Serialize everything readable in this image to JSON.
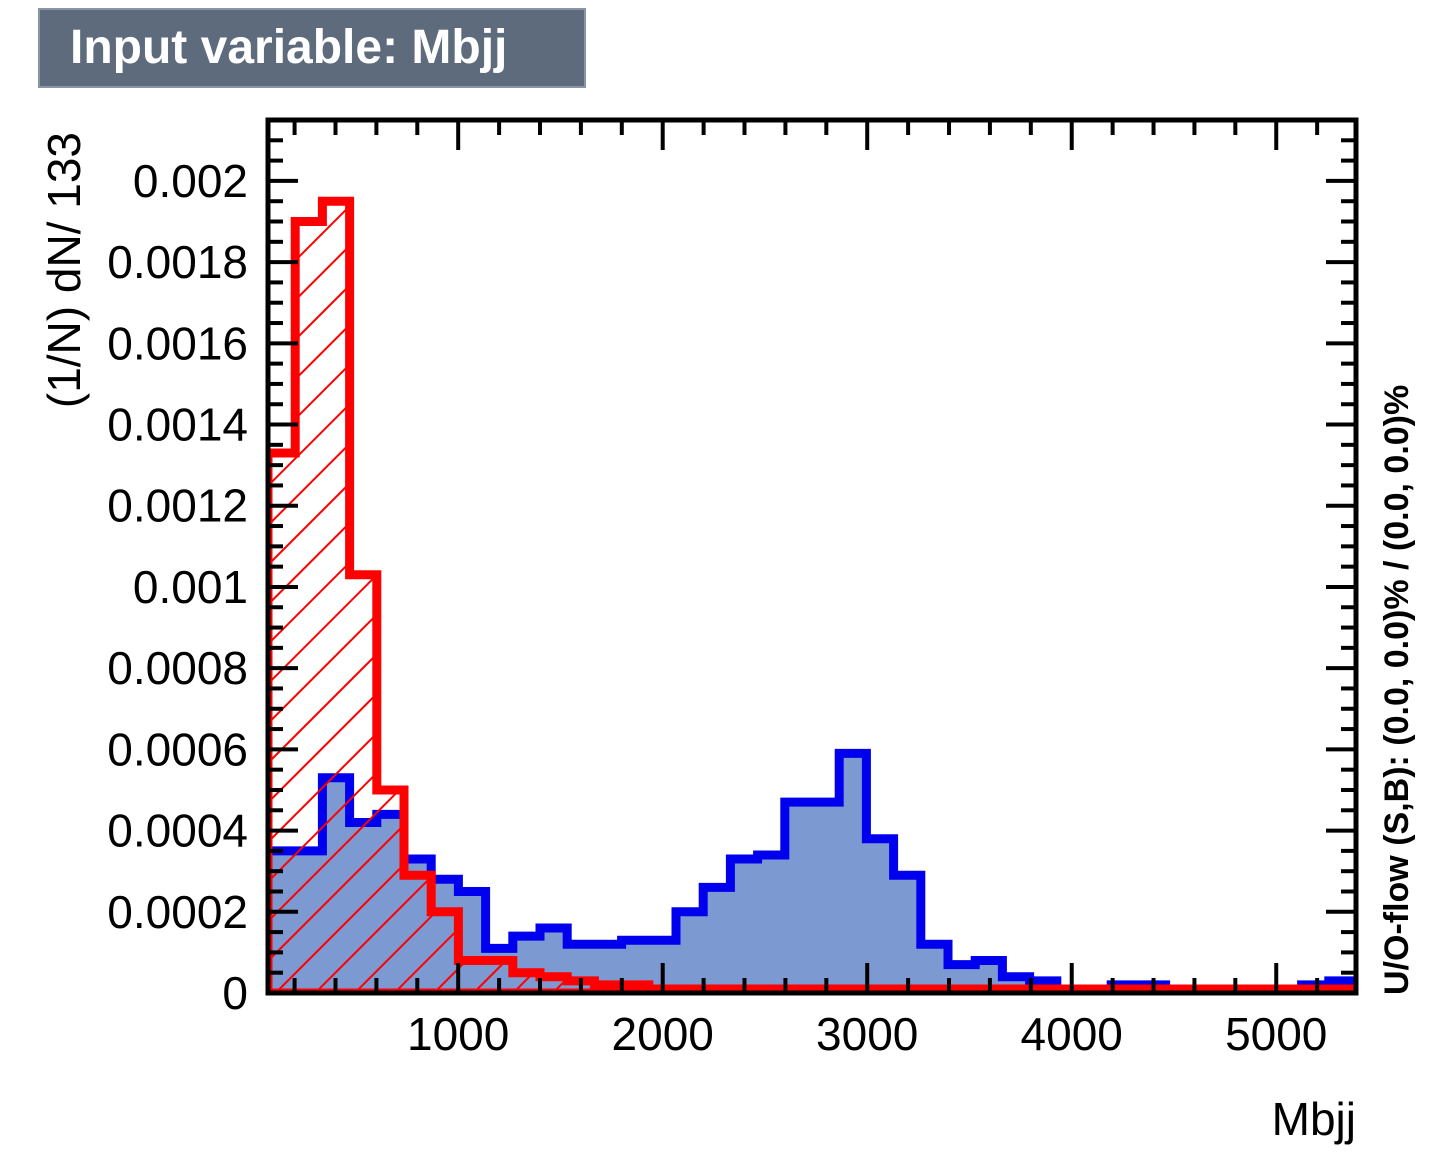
{
  "title": "Input variable: Mbjj",
  "side_note": "U/O-flow (S,B): (0.0, 0.0)% / (0.0, 0.0)%",
  "colors": {
    "signal_line": "#0000ee",
    "signal_fill": "#7d99d1",
    "background_line": "#ff0000",
    "title_box": "#5e6b7d"
  },
  "chart_data": {
    "type": "histogram",
    "xlabel": "Mbjj",
    "ylabel": "(1/N) dN/ 133",
    "xlim": [
      70,
      5390
    ],
    "ylim": [
      0,
      0.00215
    ],
    "x_ticks": [
      1000,
      2000,
      3000,
      4000,
      5000
    ],
    "x_tick_labels": [
      "1000",
      "2000",
      "3000",
      "4000",
      "5000"
    ],
    "y_ticks": [
      0,
      0.0002,
      0.0004,
      0.0006,
      0.0008,
      0.001,
      0.0012,
      0.0014,
      0.0016,
      0.0018,
      0.002
    ],
    "y_tick_labels": [
      "0",
      "0.0002",
      "0.0004",
      "0.0006",
      "0.0008",
      "0.001",
      "0.0012",
      "0.0014",
      "0.0016",
      "0.0018",
      "0.002"
    ],
    "bin_edges_start": 70,
    "bin_width": 133,
    "series": [
      {
        "style": "filled",
        "values": [
          0.00035,
          0.00035,
          0.00053,
          0.00042,
          0.00044,
          0.00033,
          0.00028,
          0.00025,
          0.00011,
          0.00014,
          0.00016,
          0.00012,
          0.00012,
          0.00013,
          0.00013,
          0.0002,
          0.00026,
          0.00033,
          0.00034,
          0.00047,
          0.00047,
          0.00059,
          0.00038,
          0.00029,
          0.00012,
          7e-05,
          8e-05,
          4e-05,
          3e-05,
          1e-05,
          1e-05,
          2e-05,
          2e-05,
          1e-05,
          1e-05,
          1e-05,
          1e-05,
          1e-05,
          2e-05,
          3e-05
        ]
      },
      {
        "style": "hatched",
        "values": [
          0.00133,
          0.0019,
          0.00195,
          0.00103,
          0.0005,
          0.00029,
          0.0002,
          8e-05,
          8e-05,
          5e-05,
          4e-05,
          3e-05,
          2e-05,
          2e-05,
          1e-05,
          1e-05,
          1e-05,
          1e-05,
          1e-05,
          1e-05,
          1e-05,
          1e-05,
          1e-05,
          1e-05,
          1e-05,
          1e-05,
          1e-05,
          1e-05,
          1e-05,
          1e-05,
          1e-05,
          1e-05,
          1e-05,
          1e-05,
          1e-05,
          1e-05,
          1e-05,
          1e-05,
          1e-05,
          1e-05
        ]
      }
    ]
  }
}
